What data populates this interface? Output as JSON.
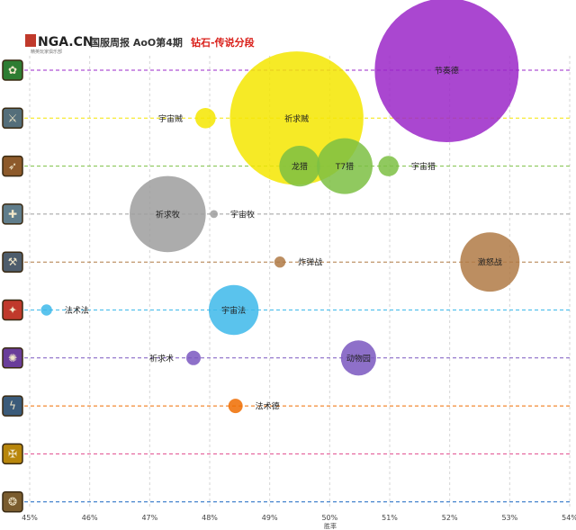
{
  "header": {
    "logo_text": "NGA.CN",
    "logo_sub": "精英玩家俱乐部",
    "title_part1": "国服周报 AoO第4期",
    "title_part2": "钻石-传说分段",
    "title_color_1": "#333333",
    "title_color_2": "#d91e18"
  },
  "class_icons": [
    {
      "name": "druid-icon",
      "color": "#2e7d32",
      "glyph": "✿"
    },
    {
      "name": "rogue-icon",
      "color": "#546e7a",
      "glyph": "⚔"
    },
    {
      "name": "hunter-icon",
      "color": "#8d5a2b",
      "glyph": "➶"
    },
    {
      "name": "priest-icon",
      "color": "#607d8b",
      "glyph": "✚"
    },
    {
      "name": "warrior-icon",
      "color": "#4e5d6c",
      "glyph": "⚒"
    },
    {
      "name": "mage-icon",
      "color": "#c0392b",
      "glyph": "✦"
    },
    {
      "name": "warlock-icon",
      "color": "#6a3d9a",
      "glyph": "✺"
    },
    {
      "name": "shaman-icon",
      "color": "#3b5b7a",
      "glyph": "ϟ"
    },
    {
      "name": "paladin-icon",
      "color": "#b8860b",
      "glyph": "✠"
    },
    {
      "name": "demon-hunter-icon",
      "color": "#7a5c2e",
      "glyph": "❂"
    }
  ],
  "chart_data": {
    "type": "scatter",
    "xlabel": "胜率",
    "xlim": [
      45,
      54
    ],
    "x_ticks": [
      "45%",
      "46%",
      "47%",
      "48%",
      "49%",
      "50%",
      "51%",
      "52%",
      "53%",
      "54%"
    ],
    "rows": [
      {
        "color": "#9b27c8"
      },
      {
        "color": "#f5e600"
      },
      {
        "color": "#7cc043"
      },
      {
        "color": "#9e9e9e"
      },
      {
        "color": "#b07a45"
      },
      {
        "color": "#3db9ea"
      },
      {
        "color": "#7a57c0"
      },
      {
        "color": "#ef6c00"
      },
      {
        "color": "#e04a8c"
      },
      {
        "color": "#1565c0"
      }
    ],
    "bubbles": [
      {
        "label": "节奏德",
        "row": 0,
        "x": 51.95,
        "size": 100,
        "color": "#9b27c8",
        "label_pos": "center"
      },
      {
        "label": "祈求贼",
        "row": 1,
        "x": 49.45,
        "size": 86,
        "color": "#f5e600",
        "label_pos": "center"
      },
      {
        "label": "宇宙贼",
        "row": 1,
        "x": 47.93,
        "size": 2,
        "color": "#f5e600",
        "label_pos": "left"
      },
      {
        "label": "龙猎",
        "row": 2,
        "x": 49.5,
        "size": 8,
        "color": "#7cc043",
        "label_pos": "center"
      },
      {
        "label": "T7猎",
        "row": 2,
        "x": 50.25,
        "size": 15,
        "color": "#7cc043",
        "label_pos": "center"
      },
      {
        "label": "宇宙猎",
        "row": 2,
        "x": 50.98,
        "size": 2,
        "color": "#7cc043",
        "label_pos": "right"
      },
      {
        "label": "祈求牧",
        "row": 3,
        "x": 47.3,
        "size": 28,
        "color": "#9e9e9e",
        "label_pos": "center"
      },
      {
        "label": "宇宙牧",
        "row": 3,
        "x": 48.07,
        "size": 0.3,
        "color": "#9e9e9e",
        "label_pos": "right"
      },
      {
        "label": "激怒战",
        "row": 4,
        "x": 52.67,
        "size": 17,
        "color": "#b07a45",
        "label_pos": "center"
      },
      {
        "label": "炸弹战",
        "row": 4,
        "x": 49.17,
        "size": 0.6,
        "color": "#b07a45",
        "label_pos": "right"
      },
      {
        "label": "宇宙法",
        "row": 5,
        "x": 48.4,
        "size": 12,
        "color": "#3db9ea",
        "label_pos": "center"
      },
      {
        "label": "法术法",
        "row": 5,
        "x": 45.28,
        "size": 0.6,
        "color": "#3db9ea",
        "label_pos": "right"
      },
      {
        "label": "动物园",
        "row": 6,
        "x": 50.48,
        "size": 6,
        "color": "#7a57c0",
        "label_pos": "center"
      },
      {
        "label": "祈求术",
        "row": 6,
        "x": 47.73,
        "size": 1,
        "color": "#7a57c0",
        "label_pos": "left"
      },
      {
        "label": "法术德",
        "row": 7,
        "x": 48.43,
        "size": 1,
        "color": "#ef6c00",
        "label_pos": "right"
      }
    ]
  }
}
